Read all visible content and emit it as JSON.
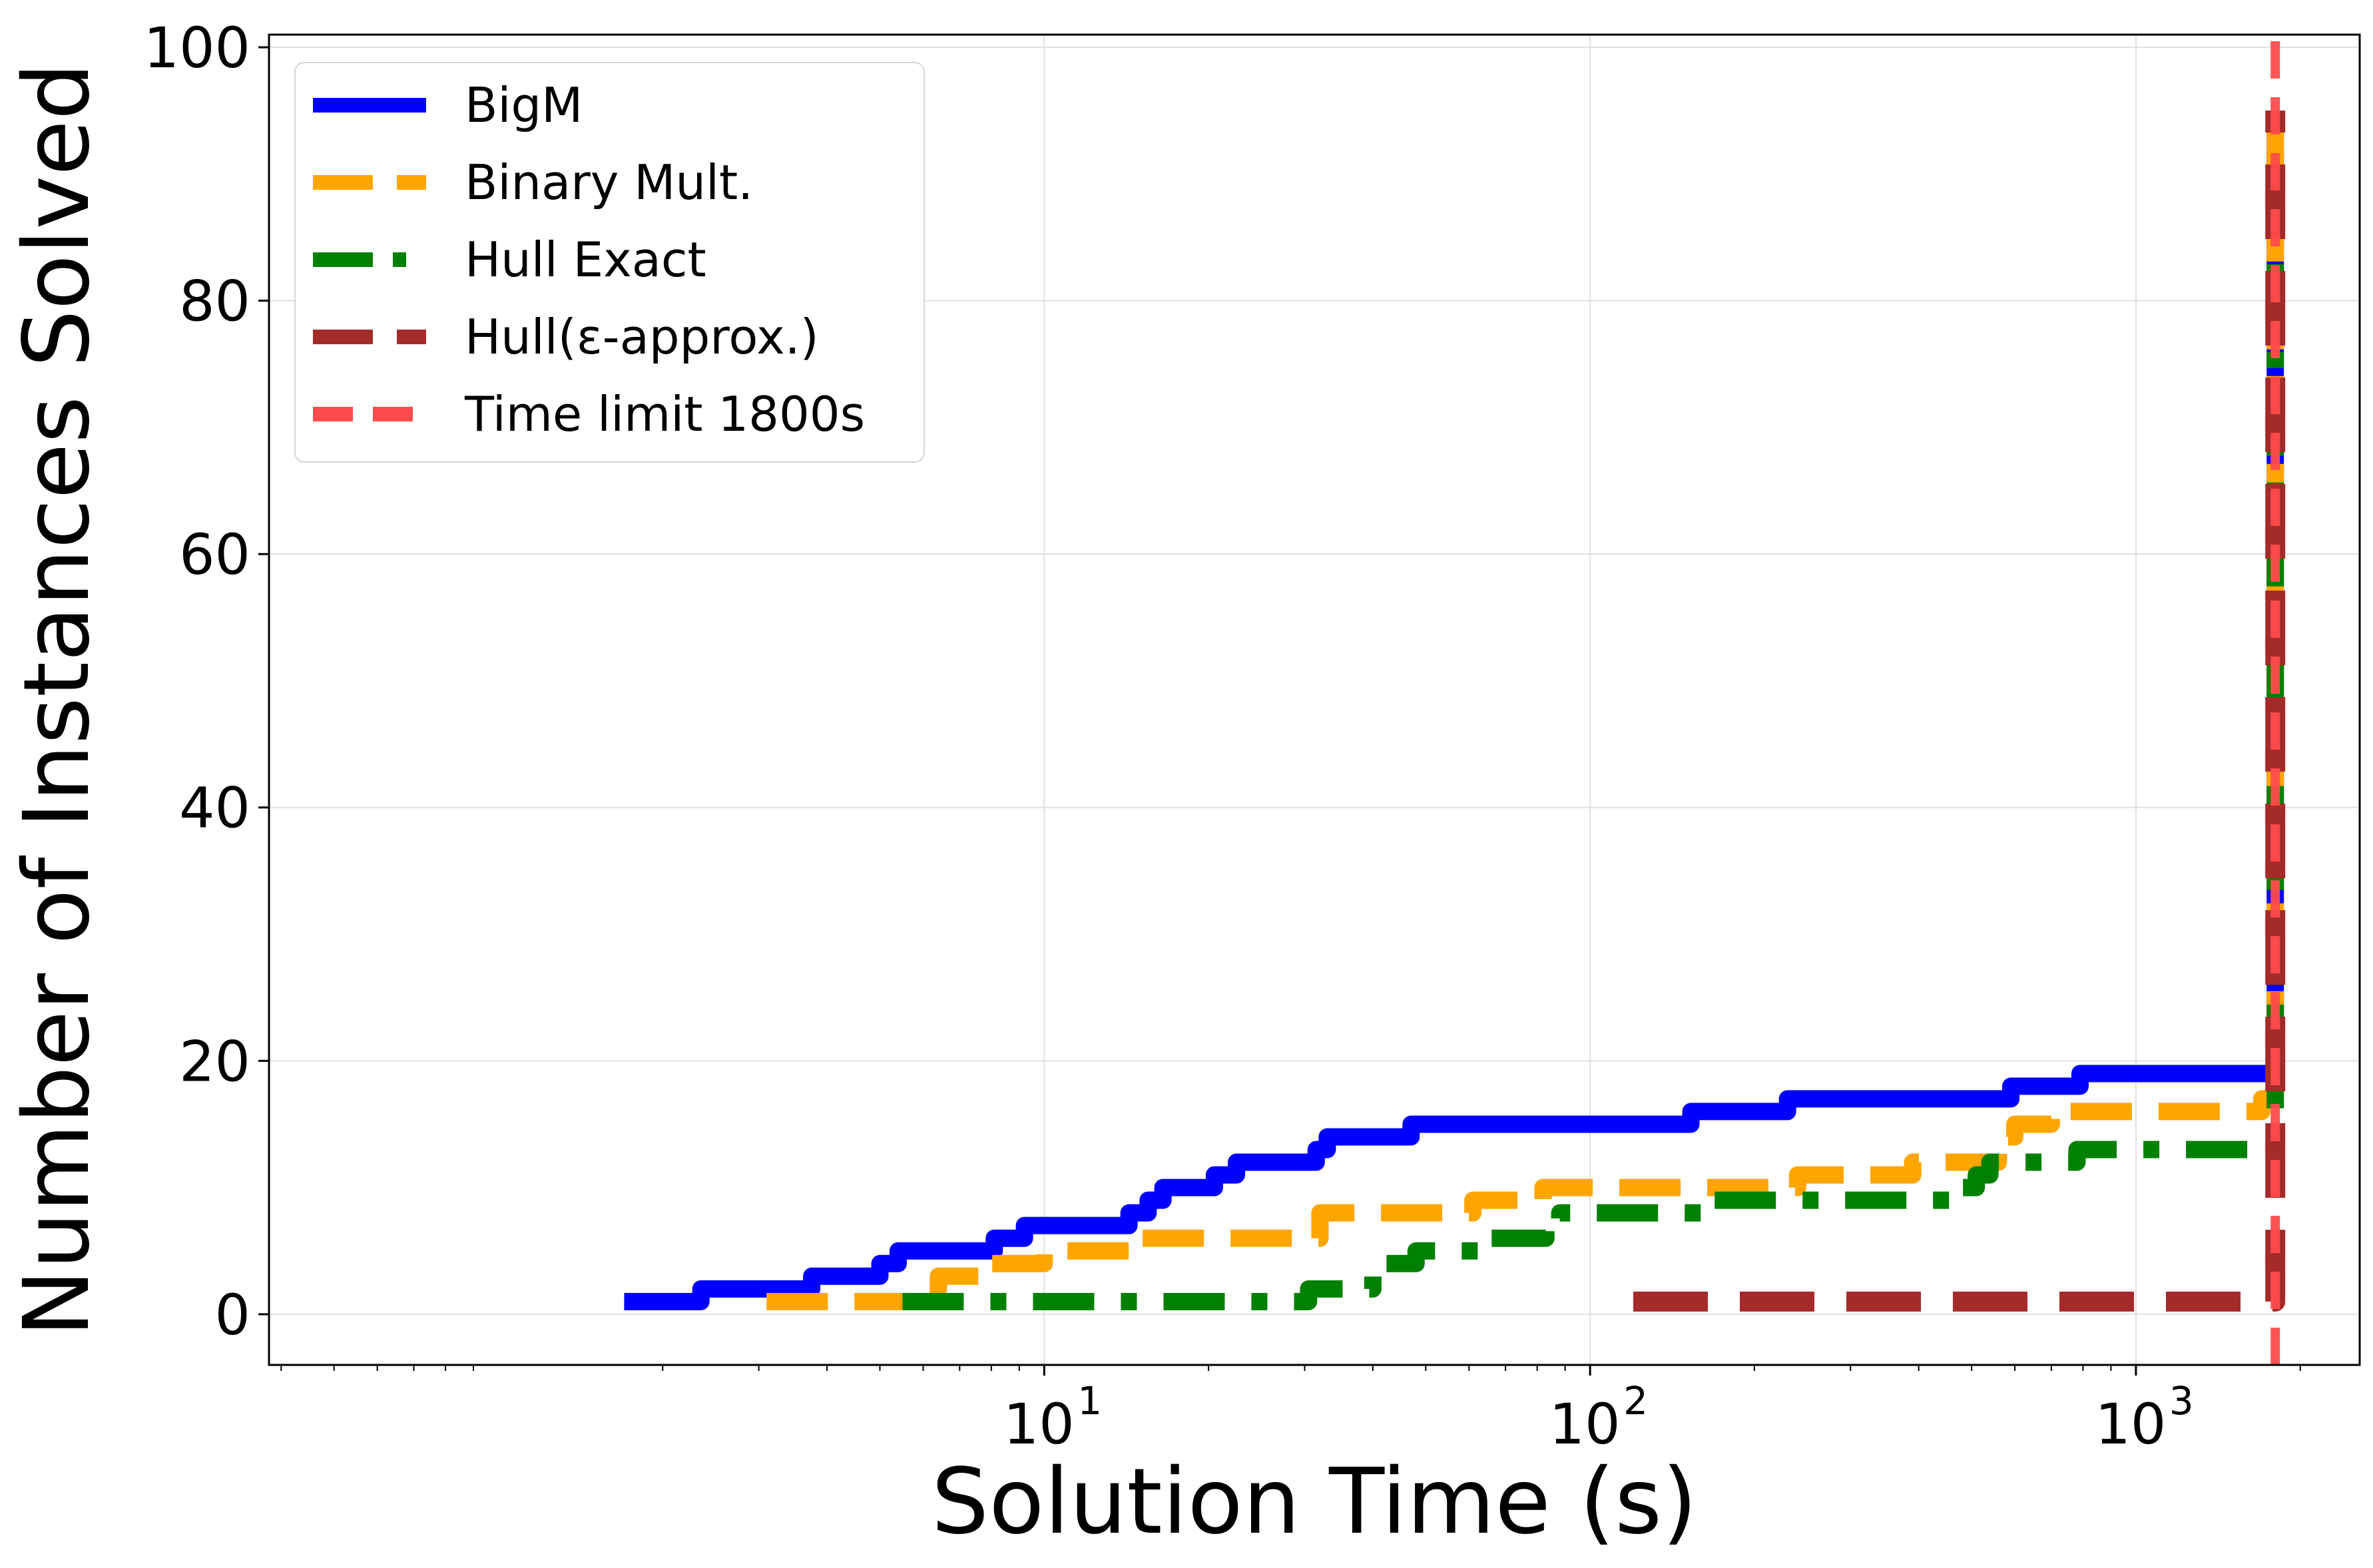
{
  "chart_data": {
    "type": "line",
    "title": "",
    "xlabel": "Solution Time (s)",
    "ylabel": "Number of Instances Solved",
    "xscale": "log",
    "xlim": [
      0.38,
      2570
    ],
    "ylim": [
      -4,
      101
    ],
    "xticks": [
      {
        "value": 10,
        "label": "10",
        "exp": "1"
      },
      {
        "value": 100,
        "label": "10",
        "exp": "2"
      },
      {
        "value": 1000,
        "label": "10",
        "exp": "3"
      }
    ],
    "yticks": [
      0,
      20,
      40,
      60,
      80,
      100
    ],
    "grid": true,
    "legend_position": "top-left",
    "series": [
      {
        "name": "BigM",
        "color": "#0000ff",
        "style": "solid",
        "x": [
          1.7,
          2.35,
          3.75,
          5.0,
          5.4,
          8.1,
          9.2,
          14.3,
          15.5,
          16.5,
          20.5,
          22.5,
          31.5,
          33.0,
          47.0,
          153.0,
          230.0,
          590.0,
          790.0,
          1800.0,
          1800.0
        ],
        "y": [
          1,
          2,
          3,
          4,
          5,
          6,
          7,
          8,
          9,
          10,
          11,
          12,
          13,
          14,
          15,
          16,
          17,
          18,
          19,
          19,
          95
        ]
      },
      {
        "name": "Binary Mult.",
        "color": "#ffa500",
        "style": "dashed",
        "x": [
          3.1,
          5.9,
          6.4,
          7.0,
          8.0,
          9.0,
          10.0,
          14.8,
          16.0,
          32.0,
          61.0,
          82.0,
          240.0,
          390.0,
          420.0,
          560.0,
          600.0,
          700.0,
          1700.0,
          1800.0,
          1800.0
        ],
        "y": [
          1,
          2,
          3,
          3,
          4,
          4,
          5,
          6,
          6,
          8,
          9,
          10,
          11,
          12,
          12,
          14,
          15,
          16,
          17,
          17,
          95
        ]
      },
      {
        "name": "Hull Exact",
        "color": "#008000",
        "style": "dashdot",
        "x": [
          5.5,
          30.5,
          32.5,
          40.0,
          41.5,
          43.0,
          48.0,
          66.0,
          83.0,
          88.0,
          160.0,
          455.0,
          475.0,
          510.0,
          540.0,
          560.0,
          780.0,
          1800.0,
          1800.0
        ],
        "y": [
          1,
          2,
          2,
          3,
          4,
          4,
          5,
          6,
          7,
          8,
          9,
          10,
          10,
          11,
          12,
          12,
          13,
          13,
          88
        ]
      },
      {
        "name": "Hull(ε-approx.)",
        "color": "#a52a2a",
        "style": "dashed",
        "x": [
          120.0,
          1800.0,
          1800.0
        ],
        "y": [
          1,
          1,
          95
        ]
      },
      {
        "name": "Time limit 1800s",
        "color": "#ff4b4b",
        "style": "dashed",
        "x": [
          1800.0,
          1800.0
        ],
        "y": [
          -4,
          101
        ]
      }
    ]
  }
}
